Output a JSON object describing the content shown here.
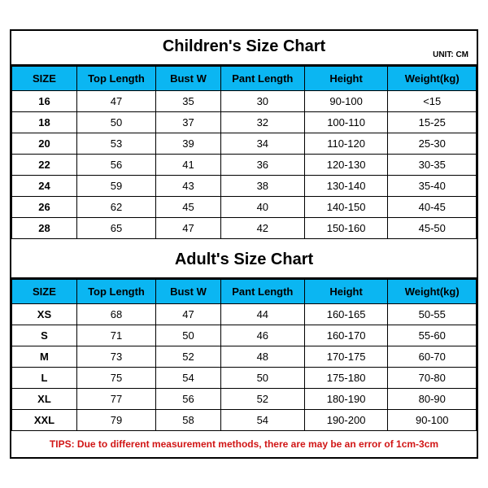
{
  "children": {
    "title": "Children's Size Chart",
    "unit": "UNIT: CM",
    "headers": [
      "SIZE",
      "Top Length",
      "Bust W",
      "Pant Length",
      "Height",
      "Weight(kg)"
    ],
    "rows": [
      [
        "16",
        "47",
        "35",
        "30",
        "90-100",
        "<15"
      ],
      [
        "18",
        "50",
        "37",
        "32",
        "100-110",
        "15-25"
      ],
      [
        "20",
        "53",
        "39",
        "34",
        "110-120",
        "25-30"
      ],
      [
        "22",
        "56",
        "41",
        "36",
        "120-130",
        "30-35"
      ],
      [
        "24",
        "59",
        "43",
        "38",
        "130-140",
        "35-40"
      ],
      [
        "26",
        "62",
        "45",
        "40",
        "140-150",
        "40-45"
      ],
      [
        "28",
        "65",
        "47",
        "42",
        "150-160",
        "45-50"
      ]
    ]
  },
  "adult": {
    "title": "Adult's Size Chart",
    "headers": [
      "SIZE",
      "Top Length",
      "Bust W",
      "Pant Length",
      "Height",
      "Weight(kg)"
    ],
    "rows": [
      [
        "XS",
        "68",
        "47",
        "44",
        "160-165",
        "50-55"
      ],
      [
        "S",
        "71",
        "50",
        "46",
        "160-170",
        "55-60"
      ],
      [
        "M",
        "73",
        "52",
        "48",
        "170-175",
        "60-70"
      ],
      [
        "L",
        "75",
        "54",
        "50",
        "175-180",
        "70-80"
      ],
      [
        "XL",
        "77",
        "56",
        "52",
        "180-190",
        "80-90"
      ],
      [
        "XXL",
        "79",
        "58",
        "54",
        "190-200",
        "90-100"
      ]
    ]
  },
  "tips": "TIPS: Due to different measurement methods, there are may be an error of 1cm-3cm",
  "style": {
    "header_bg": "#0bb6f2",
    "border_color": "#000000",
    "tips_color": "#d11515",
    "title_fontsize": 20,
    "cell_fontsize": 13,
    "col_widths_pct": [
      14,
      17,
      14,
      18,
      18,
      19
    ]
  }
}
